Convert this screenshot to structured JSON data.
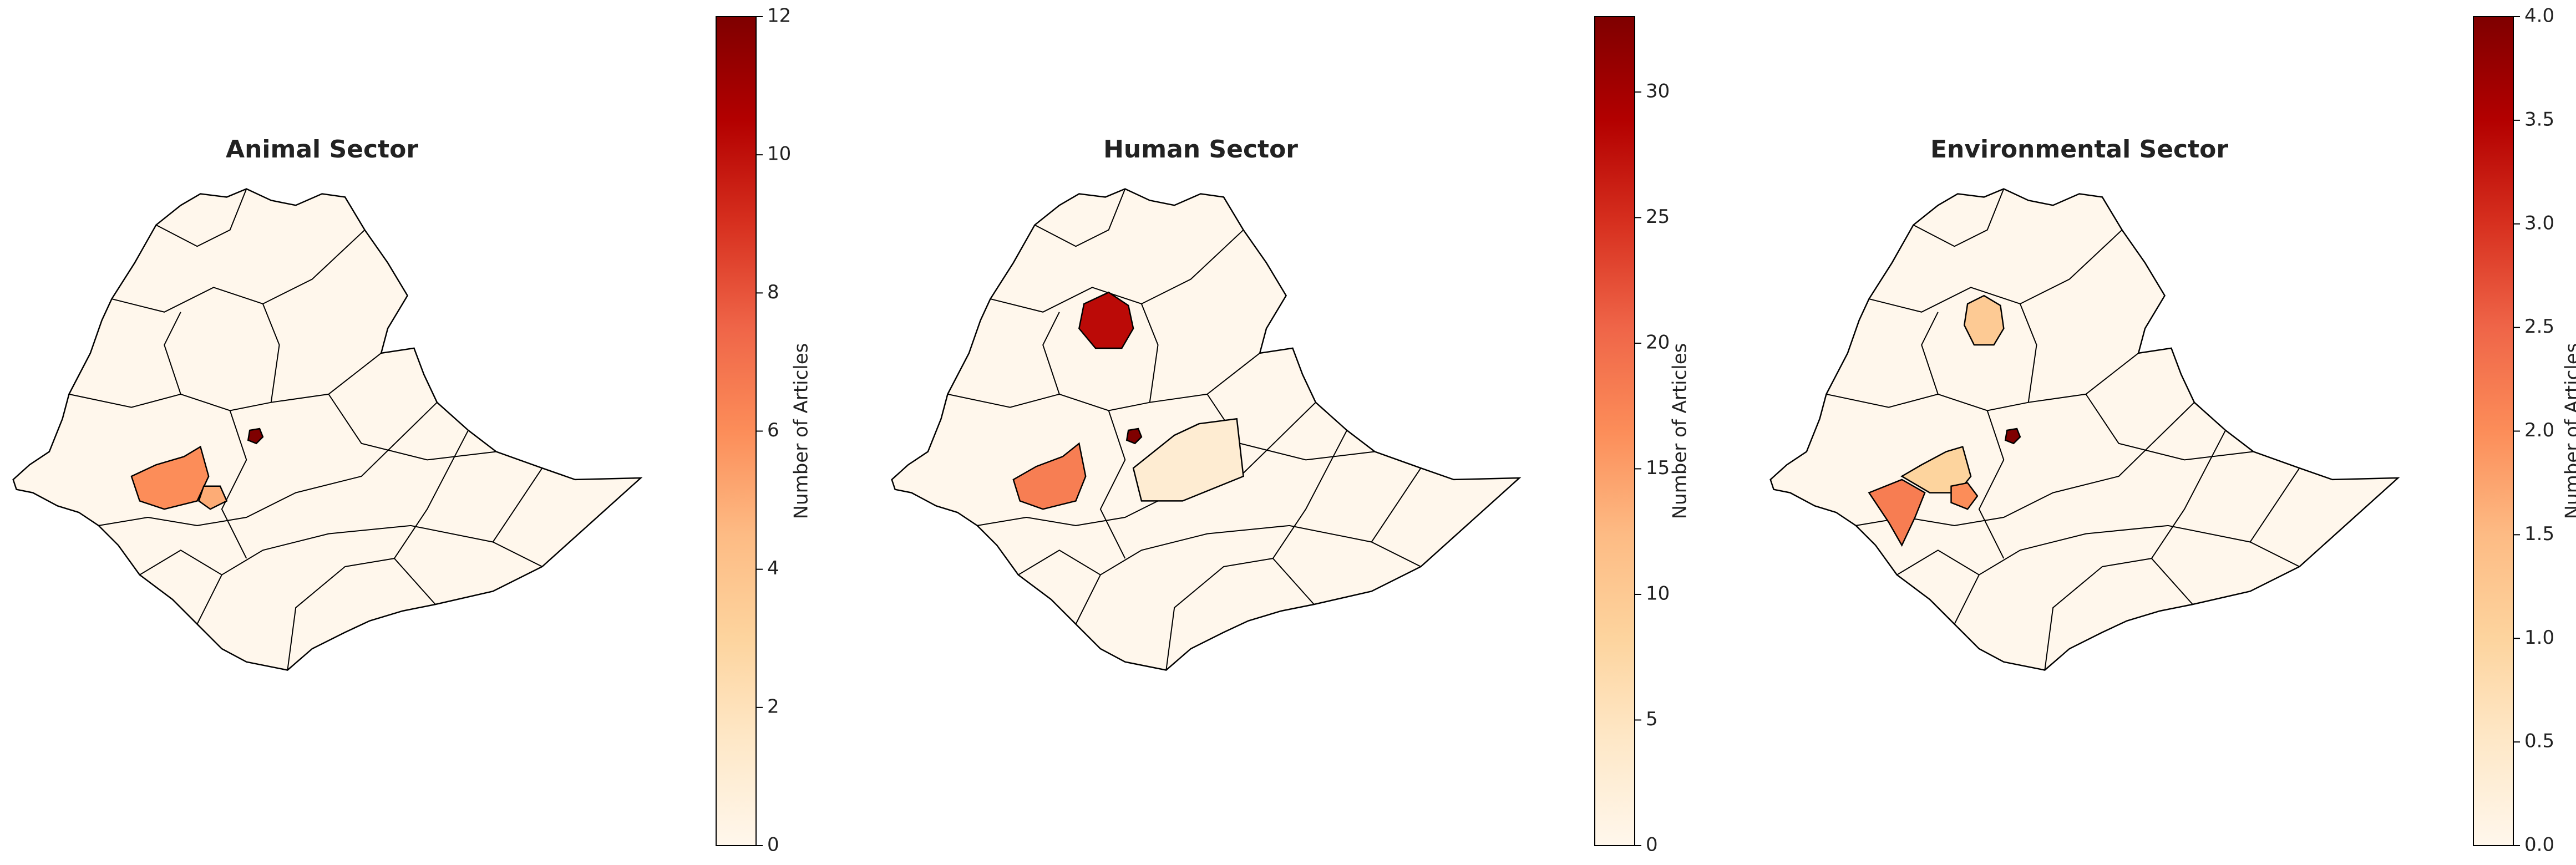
{
  "chart_data": [
    {
      "type": "choropleth",
      "title": "Animal Sector",
      "colorbar_label": "Number of Articles",
      "cmap": "OrRd",
      "clim": [
        0,
        12
      ],
      "cticks": [
        0,
        2,
        4,
        6,
        8,
        10,
        12
      ],
      "values": [
        12,
        6,
        5
      ]
    },
    {
      "type": "choropleth",
      "title": "Human Sector",
      "colorbar_label": "Number of Articles",
      "cmap": "OrRd",
      "clim": [
        0,
        33
      ],
      "cticks": [
        0,
        5,
        10,
        15,
        20,
        25,
        30
      ],
      "values": [
        33,
        28,
        18,
        3
      ]
    },
    {
      "type": "choropleth",
      "title": "Environmental Sector",
      "colorbar_label": "Number of Articles",
      "cmap": "OrRd",
      "clim": [
        0,
        4
      ],
      "cticks": [
        {
          "value": 0,
          "label": "0.0"
        },
        0.5,
        {
          "value": 1,
          "label": "1.0"
        },
        1.5,
        {
          "value": 2,
          "label": "2.0"
        },
        2.5,
        {
          "value": 3,
          "label": "3.0"
        },
        3.5,
        {
          "value": 4,
          "label": "4.0"
        }
      ],
      "values": [
        4,
        1.2,
        1,
        2.2,
        2
      ]
    }
  ]
}
